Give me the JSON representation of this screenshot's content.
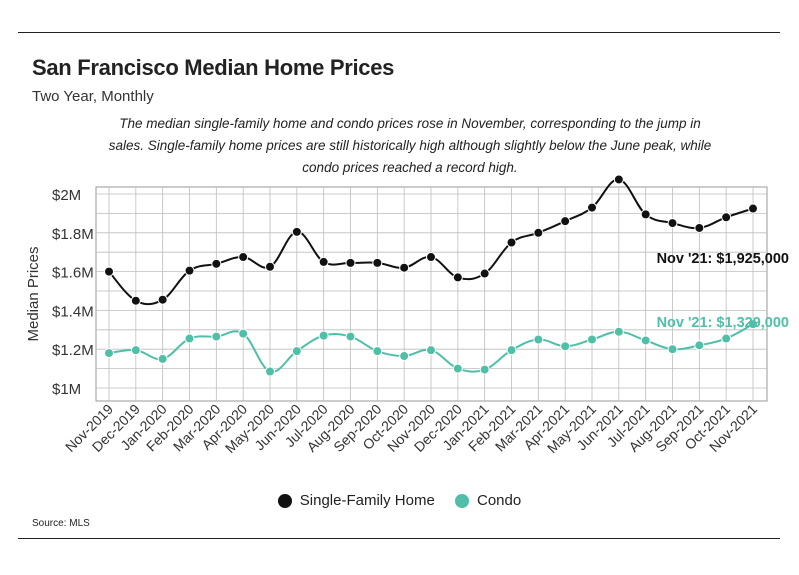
{
  "header": {
    "title": "San Francisco Median Home Prices",
    "subtitle": "Two Year, Monthly",
    "description": "The median single-family home and condo prices rose in November, corresponding to the jump in sales. Single-family home prices are still historically high although slightly below the June peak, while condo prices reached a record high."
  },
  "source": "Source:  MLS",
  "colors": {
    "sfh": "#111111",
    "condo": "#4fbfa8",
    "grid": "#bdbdbd"
  },
  "chart_data": {
    "type": "line",
    "categories": [
      "Nov-2019",
      "Dec-2019",
      "Jan-2020",
      "Feb-2020",
      "Mar-2020",
      "Apr-2020",
      "May-2020",
      "Jun-2020",
      "Jul-2020",
      "Aug-2020",
      "Sep-2020",
      "Oct-2020",
      "Nov-2020",
      "Dec-2020",
      "Jan-2021",
      "Feb-2021",
      "Mar-2021",
      "Apr-2021",
      "May-2021",
      "Jun-2021",
      "Jul-2021",
      "Aug-2021",
      "Sep-2021",
      "Oct-2021",
      "Nov-2021"
    ],
    "series": [
      {
        "name": "Single-Family Home",
        "color": "#111111",
        "values": [
          1600000,
          1450000,
          1455000,
          1605000,
          1640000,
          1675000,
          1625000,
          1805000,
          1650000,
          1645000,
          1645000,
          1620000,
          1675000,
          1570000,
          1590000,
          1750000,
          1800000,
          1860000,
          1930000,
          2075000,
          1895000,
          1850000,
          1825000,
          1880000,
          1925000
        ]
      },
      {
        "name": "Condo",
        "color": "#4fbfa8",
        "values": [
          1180000,
          1195000,
          1150000,
          1255000,
          1265000,
          1280000,
          1085000,
          1190000,
          1270000,
          1265000,
          1190000,
          1165000,
          1195000,
          1100000,
          1095000,
          1195000,
          1250000,
          1215000,
          1250000,
          1290000,
          1245000,
          1200000,
          1220000,
          1255000,
          1329000
        ]
      }
    ],
    "y_ticks": [
      1000000,
      1200000,
      1400000,
      1600000,
      1800000,
      2000000
    ],
    "y_tick_labels": [
      "$1M",
      "$1.2M",
      "$1.4M",
      "$1.6M",
      "$1.8M",
      "$2M"
    ],
    "ylim": [
      1000000,
      2000000
    ],
    "ylabel": "Median Prices",
    "xlabel": "",
    "grid": true,
    "legend": "bottom-center",
    "annotations": [
      {
        "text": "Nov '21: $1,925,000",
        "series": "Single-Family Home",
        "color": "#111111"
      },
      {
        "text": "Nov '21: $1,329,000",
        "series": "Condo",
        "color": "#4fbfa8"
      }
    ]
  }
}
